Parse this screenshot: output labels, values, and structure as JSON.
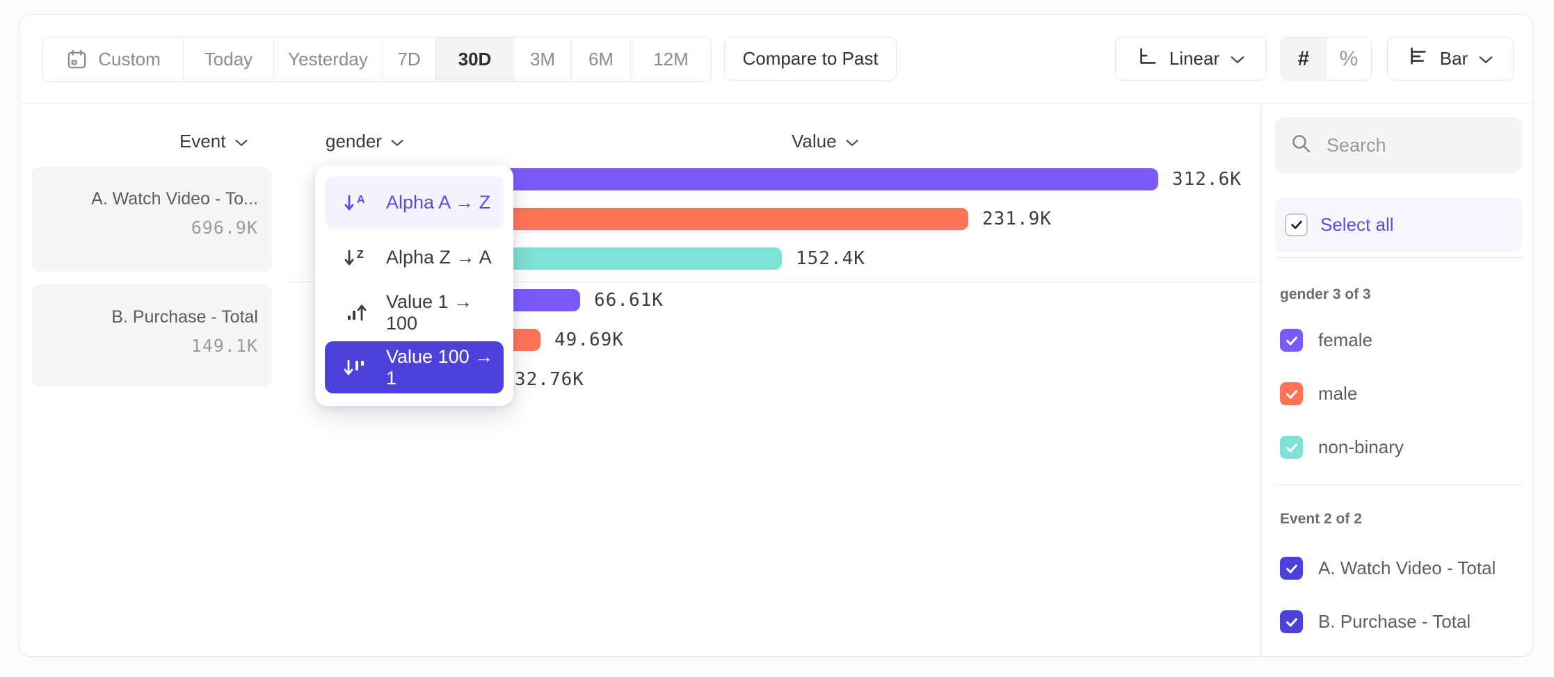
{
  "toolbar": {
    "date_ranges": [
      "Custom",
      "Today",
      "Yesterday",
      "7D",
      "30D",
      "3M",
      "6M",
      "12M"
    ],
    "selected_range": "30D",
    "compare_button": "Compare to Past",
    "scale_selector_label": "Linear",
    "format_options": [
      "#",
      "%"
    ],
    "format_selected": "#",
    "chart_type_label": "Bar"
  },
  "column_headers": {
    "event": "Event",
    "breakdown": "gender",
    "value": "Value"
  },
  "event_cards": [
    {
      "name": "A. Watch Video - To...",
      "value": "696.9K"
    },
    {
      "name": "B. Purchase - Total",
      "value": "149.1K"
    }
  ],
  "sort_menu": {
    "items": [
      {
        "label": "Alpha A → Z",
        "icon": "alpha-asc",
        "state": "hover"
      },
      {
        "label": "Alpha Z → A",
        "icon": "alpha-desc",
        "state": "default"
      },
      {
        "label": "Value 1 → 100",
        "icon": "value-asc",
        "state": "default"
      },
      {
        "label": "Value 100 → 1",
        "icon": "value-desc",
        "state": "selected"
      }
    ]
  },
  "chart_data": {
    "type": "bar",
    "orientation": "horizontal",
    "sort": "Value 100 → 1",
    "breakdown_property": "gender",
    "groups": [
      {
        "event": "A. Watch Video - Total",
        "total": "696.9K",
        "bars": [
          {
            "segment": "female",
            "value_k": 312.6,
            "label": "312.6K",
            "color": "purple"
          },
          {
            "segment": "male",
            "value_k": 231.9,
            "label": "231.9K",
            "color": "orange"
          },
          {
            "segment": "non-binary",
            "value_k": 152.4,
            "label": "152.4K",
            "color": "teal"
          }
        ]
      },
      {
        "event": "B. Purchase - Total",
        "total": "149.1K",
        "bars": [
          {
            "segment": "female",
            "value_k": 66.61,
            "label": "66.61K",
            "color": "purple"
          },
          {
            "segment": "male",
            "value_k": 49.69,
            "label": "49.69K",
            "color": "orange"
          },
          {
            "segment": "non-binary",
            "value_k": 32.76,
            "label": "32.76K",
            "color": "teal"
          }
        ]
      }
    ]
  },
  "sidebar": {
    "search_placeholder": "Search",
    "select_all_label": "Select all",
    "groups": [
      {
        "title": "gender 3 of 3",
        "items": [
          {
            "label": "female",
            "color": "purple",
            "checked": true
          },
          {
            "label": "male",
            "color": "orange",
            "checked": true
          },
          {
            "label": "non-binary",
            "color": "teal",
            "checked": true
          }
        ]
      },
      {
        "title": "Event 2 of 2",
        "items": [
          {
            "label": "A. Watch Video - Total",
            "color": "indigo",
            "checked": true
          },
          {
            "label": "B. Purchase - Total",
            "color": "indigo",
            "checked": true
          }
        ]
      }
    ]
  },
  "colors": {
    "purple": "#7a5afb",
    "orange": "#ff7457",
    "teal": "#7fe0d6",
    "indigo": "#4c41da",
    "purple_text": "#5a4ee2",
    "menu_hover_bg": "#f4f3fd",
    "select_all_bg": "#f7f6fd"
  }
}
